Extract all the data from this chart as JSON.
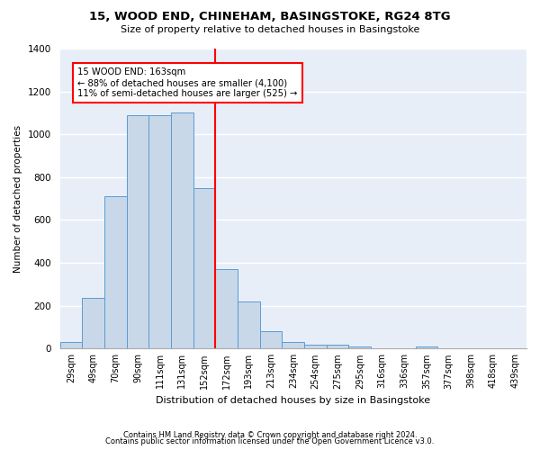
{
  "title1": "15, WOOD END, CHINEHAM, BASINGSTOKE, RG24 8TG",
  "title2": "Size of property relative to detached houses in Basingstoke",
  "xlabel": "Distribution of detached houses by size in Basingstoke",
  "ylabel": "Number of detached properties",
  "footnote1": "Contains HM Land Registry data © Crown copyright and database right 2024.",
  "footnote2": "Contains public sector information licensed under the Open Government Licence v3.0.",
  "annotation_title": "15 WOOD END: 163sqm",
  "annotation_line1": "← 88% of detached houses are smaller (4,100)",
  "annotation_line2": "11% of semi-detached houses are larger (525) →",
  "bar_color": "#c8d8e8",
  "bar_edge_color": "#5b9bd5",
  "vline_color": "red",
  "categories": [
    "29sqm",
    "49sqm",
    "70sqm",
    "90sqm",
    "111sqm",
    "131sqm",
    "152sqm",
    "172sqm",
    "193sqm",
    "213sqm",
    "234sqm",
    "254sqm",
    "275sqm",
    "295sqm",
    "316sqm",
    "336sqm",
    "357sqm",
    "377sqm",
    "398sqm",
    "418sqm",
    "439sqm"
  ],
  "values": [
    30,
    235,
    710,
    1090,
    1090,
    1100,
    750,
    370,
    220,
    80,
    30,
    20,
    20,
    10,
    0,
    0,
    10,
    0,
    0,
    0,
    0
  ],
  "ylim": [
    0,
    1400
  ],
  "grid_color": "#d0d8e8",
  "background_color": "#e8eef8"
}
